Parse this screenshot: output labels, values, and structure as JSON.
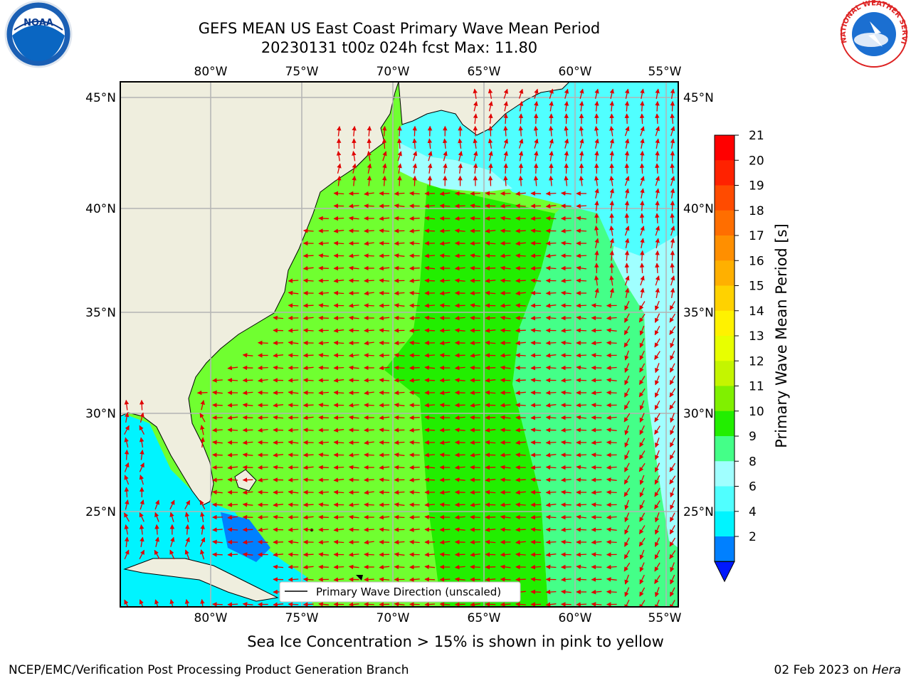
{
  "title_line1": "GEFS MEAN US East Coast Primary Wave Mean Period",
  "title_line2": "20230131 t00z 024h fcst   Max: 11.80",
  "logos": {
    "left": "NOAA",
    "right_text": "NATIONAL WEATHER SERVICE"
  },
  "lon_labels": [
    "80°W",
    "75°W",
    "70°W",
    "65°W",
    "60°W",
    "55°W"
  ],
  "lat_labels": [
    "45°N",
    "40°N",
    "35°N",
    "30°N",
    "25°N"
  ],
  "legend_label": "Primary Wave Direction (unscaled)",
  "colorbar": {
    "label": "Primary Wave Mean Period [s]",
    "ticks": [
      "21",
      "20",
      "19",
      "18",
      "17",
      "16",
      "15",
      "14",
      "13",
      "12",
      "11",
      "10",
      "9",
      "8",
      "6",
      "4",
      "2"
    ],
    "colors": [
      "#ff0000",
      "#ff2200",
      "#ff4b00",
      "#ff6e00",
      "#ff8f00",
      "#ffb000",
      "#ffd200",
      "#fff200",
      "#e8ff00",
      "#c4f500",
      "#80f000",
      "#22ee00",
      "#44ff88",
      "#a0ffff",
      "#50ffff",
      "#00f4ff",
      "#0080ff"
    ],
    "extend_color": "#0018ff"
  },
  "bottom_note": "Sea Ice Concentration > 15% is shown in pink to yellow",
  "footer_left": "NCEP/EMC/Verification Post Processing Product Generation Branch",
  "footer_date": "02 Feb 2023 on",
  "footer_host": "Hera",
  "colors": {
    "land": "#efeede",
    "arrow": "#e00000",
    "grid": "#b4b4b4"
  }
}
